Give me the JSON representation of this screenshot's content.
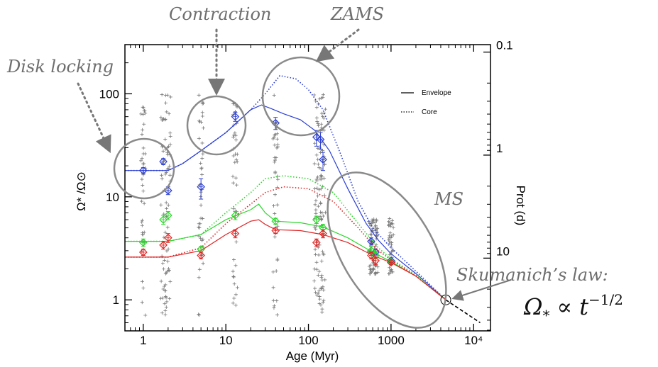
{
  "chart_data": {
    "type": "line",
    "xscale": "log",
    "yscale": "log",
    "xlabel": "Age (Myr)",
    "ylabel": "Ω* /Ω⊙",
    "y2label": "Prot (d)",
    "xlim": [
      0.6,
      16000
    ],
    "ylim": [
      0.5,
      300
    ],
    "x_ticks": [
      {
        "v": 1,
        "label": "1"
      },
      {
        "v": 10,
        "label": "10"
      },
      {
        "v": 100,
        "label": "100"
      },
      {
        "v": 1000,
        "label": "1000"
      },
      {
        "v": 10000,
        "label": "10⁴"
      }
    ],
    "y_ticks": [
      {
        "v": 1,
        "label": "1"
      },
      {
        "v": 10,
        "label": "10"
      },
      {
        "v": 100,
        "label": "100"
      }
    ],
    "y2_ticks": [
      {
        "v": 0.1,
        "label": "0.1"
      },
      {
        "v": 1,
        "label": "1"
      },
      {
        "v": 10,
        "label": "10"
      }
    ],
    "legend": [
      {
        "label": "Envelope",
        "style": "solid"
      },
      {
        "label": "Core",
        "style": "dotted"
      }
    ],
    "series": [
      {
        "color": "#2b3fd6",
        "envelope": [
          [
            0.6,
            18
          ],
          [
            2,
            18
          ],
          [
            3,
            21
          ],
          [
            5,
            28
          ],
          [
            10,
            42
          ],
          [
            20,
            70
          ],
          [
            27,
            78
          ],
          [
            35,
            72
          ],
          [
            50,
            64
          ],
          [
            80,
            56
          ],
          [
            120,
            44
          ],
          [
            180,
            28
          ],
          [
            300,
            12
          ],
          [
            500,
            5.5
          ],
          [
            700,
            3.8
          ],
          [
            1000,
            2.8
          ],
          [
            2000,
            1.8
          ],
          [
            4600,
            1.0
          ]
        ],
        "core": [
          [
            0.6,
            18
          ],
          [
            2,
            18
          ],
          [
            3,
            21
          ],
          [
            5,
            28
          ],
          [
            10,
            42
          ],
          [
            20,
            70
          ],
          [
            30,
            100
          ],
          [
            45,
            150
          ],
          [
            70,
            140
          ],
          [
            100,
            110
          ],
          [
            150,
            70
          ],
          [
            250,
            25
          ],
          [
            400,
            9
          ],
          [
            600,
            5
          ],
          [
            1000,
            3.2
          ],
          [
            2000,
            1.9
          ],
          [
            4600,
            1.0
          ]
        ],
        "observations": [
          {
            "x": 1,
            "y": 18,
            "err": [
              1.2,
              1.2
            ]
          },
          {
            "x": 1.75,
            "y": 22,
            "err": [
              1.5,
              1.5
            ]
          },
          {
            "x": 2,
            "y": 11.5,
            "err": [
              1,
              1
            ]
          },
          {
            "x": 5,
            "y": 12.5,
            "err": [
              3,
              2.5
            ]
          },
          {
            "x": 13,
            "y": 60,
            "err": [
              6,
              6
            ]
          },
          {
            "x": 40,
            "y": 52,
            "err": [
              7,
              7
            ]
          },
          {
            "x": 125,
            "y": 38,
            "err": [
              7,
              6
            ]
          },
          {
            "x": 140,
            "y": 36,
            "err": [
              7,
              6
            ]
          },
          {
            "x": 150,
            "y": 23,
            "err": [
              5,
              4
            ]
          },
          {
            "x": 575,
            "y": 3.7,
            "err": [
              0.3,
              0.3
            ]
          },
          {
            "x": 650,
            "y": 2.9,
            "err": [
              0.2,
              0.2
            ]
          },
          {
            "x": 1000,
            "y": 2.4,
            "err": [
              0.15,
              0.15
            ]
          }
        ]
      },
      {
        "color": "#2dd62d",
        "envelope": [
          [
            0.6,
            3.7
          ],
          [
            2,
            3.7
          ],
          [
            5,
            4.3
          ],
          [
            10,
            6
          ],
          [
            20,
            7.5
          ],
          [
            25,
            8.5
          ],
          [
            30,
            7
          ],
          [
            40,
            5.8
          ],
          [
            80,
            5.6
          ],
          [
            150,
            5.1
          ],
          [
            300,
            4.0
          ],
          [
            600,
            2.9
          ],
          [
            1000,
            2.35
          ],
          [
            2000,
            1.7
          ],
          [
            4600,
            1.0
          ]
        ],
        "core": [
          [
            0.6,
            3.7
          ],
          [
            2,
            3.7
          ],
          [
            5,
            4.3
          ],
          [
            10,
            7
          ],
          [
            20,
            11
          ],
          [
            30,
            15
          ],
          [
            50,
            16
          ],
          [
            100,
            15
          ],
          [
            200,
            11
          ],
          [
            400,
            5.5
          ],
          [
            700,
            3.2
          ],
          [
            1000,
            2.5
          ],
          [
            2000,
            1.75
          ],
          [
            4600,
            1.0
          ]
        ],
        "observations": [
          {
            "x": 1,
            "y": 3.6,
            "err": [
              0.3,
              0.3
            ]
          },
          {
            "x": 1.75,
            "y": 6.0,
            "err": [
              0.6,
              0.6
            ]
          },
          {
            "x": 2,
            "y": 6.6,
            "err": [
              0.6,
              0.6
            ]
          },
          {
            "x": 5,
            "y": 3.1,
            "err": [
              0.2,
              0.2
            ]
          },
          {
            "x": 13,
            "y": 6.6,
            "err": [
              0.6,
              0.6
            ]
          },
          {
            "x": 40,
            "y": 5.8,
            "err": [
              0.4,
              0.4
            ]
          },
          {
            "x": 125,
            "y": 6.0,
            "err": [
              0.5,
              0.5
            ]
          },
          {
            "x": 150,
            "y": 5.0,
            "err": [
              0.4,
              0.4
            ]
          },
          {
            "x": 575,
            "y": 3.0,
            "err": [
              0.3,
              0.3
            ]
          },
          {
            "x": 650,
            "y": 2.7,
            "err": [
              0.2,
              0.2
            ]
          },
          {
            "x": 1000,
            "y": 2.35,
            "err": [
              0.12,
              0.12
            ]
          }
        ]
      },
      {
        "color": "#e02424",
        "envelope": [
          [
            0.6,
            2.6
          ],
          [
            2,
            2.6
          ],
          [
            5,
            3.0
          ],
          [
            10,
            4.3
          ],
          [
            20,
            5.8
          ],
          [
            25,
            6.0
          ],
          [
            30,
            5.4
          ],
          [
            40,
            4.8
          ],
          [
            80,
            4.7
          ],
          [
            150,
            4.3
          ],
          [
            300,
            3.6
          ],
          [
            600,
            2.7
          ],
          [
            1000,
            2.3
          ],
          [
            2000,
            1.7
          ],
          [
            4600,
            1.0
          ]
        ],
        "core": [
          [
            0.6,
            2.6
          ],
          [
            2,
            2.6
          ],
          [
            5,
            3.2
          ],
          [
            10,
            5.5
          ],
          [
            20,
            8.5
          ],
          [
            30,
            11
          ],
          [
            50,
            12.5
          ],
          [
            100,
            12
          ],
          [
            200,
            9
          ],
          [
            400,
            5
          ],
          [
            700,
            3.0
          ],
          [
            1000,
            2.45
          ],
          [
            2000,
            1.7
          ],
          [
            4600,
            1.0
          ]
        ],
        "observations": [
          {
            "x": 1,
            "y": 2.9,
            "err": [
              0.2,
              0.2
            ]
          },
          {
            "x": 1.75,
            "y": 3.4,
            "err": [
              0.3,
              0.3
            ]
          },
          {
            "x": 2,
            "y": 4.0,
            "err": [
              0.4,
              0.4
            ]
          },
          {
            "x": 5,
            "y": 2.7,
            "err": [
              0.2,
              0.2
            ]
          },
          {
            "x": 13,
            "y": 4.4,
            "err": [
              0.4,
              0.4
            ]
          },
          {
            "x": 40,
            "y": 4.7,
            "err": [
              0.3,
              0.3
            ]
          },
          {
            "x": 125,
            "y": 3.6,
            "err": [
              0.3,
              0.3
            ]
          },
          {
            "x": 150,
            "y": 4.4,
            "err": [
              0.4,
              0.4
            ]
          },
          {
            "x": 575,
            "y": 2.7,
            "err": [
              0.2,
              0.2
            ]
          },
          {
            "x": 650,
            "y": 2.4,
            "err": [
              0.2,
              0.2
            ]
          },
          {
            "x": 1000,
            "y": 2.3,
            "err": [
              0.1,
              0.1
            ]
          }
        ]
      }
    ],
    "skumanich_line": [
      [
        4600,
        1.0
      ],
      [
        12000,
        0.6
      ]
    ],
    "sun": {
      "x": 4600,
      "y": 1.0
    },
    "cluster_ages": [
      1,
      1.75,
      2,
      5,
      13,
      40,
      125,
      140,
      150,
      575,
      650,
      1000
    ],
    "annotations": [
      {
        "text": "Disk locking"
      },
      {
        "text": "Contraction"
      },
      {
        "text": "ZAMS"
      },
      {
        "text": "MS"
      },
      {
        "text": "Skumanich’s law:"
      }
    ],
    "formula": {
      "base": "Ω",
      "sub": "*",
      "rel": "∝",
      "var": "t",
      "exp": "−1/2"
    }
  }
}
